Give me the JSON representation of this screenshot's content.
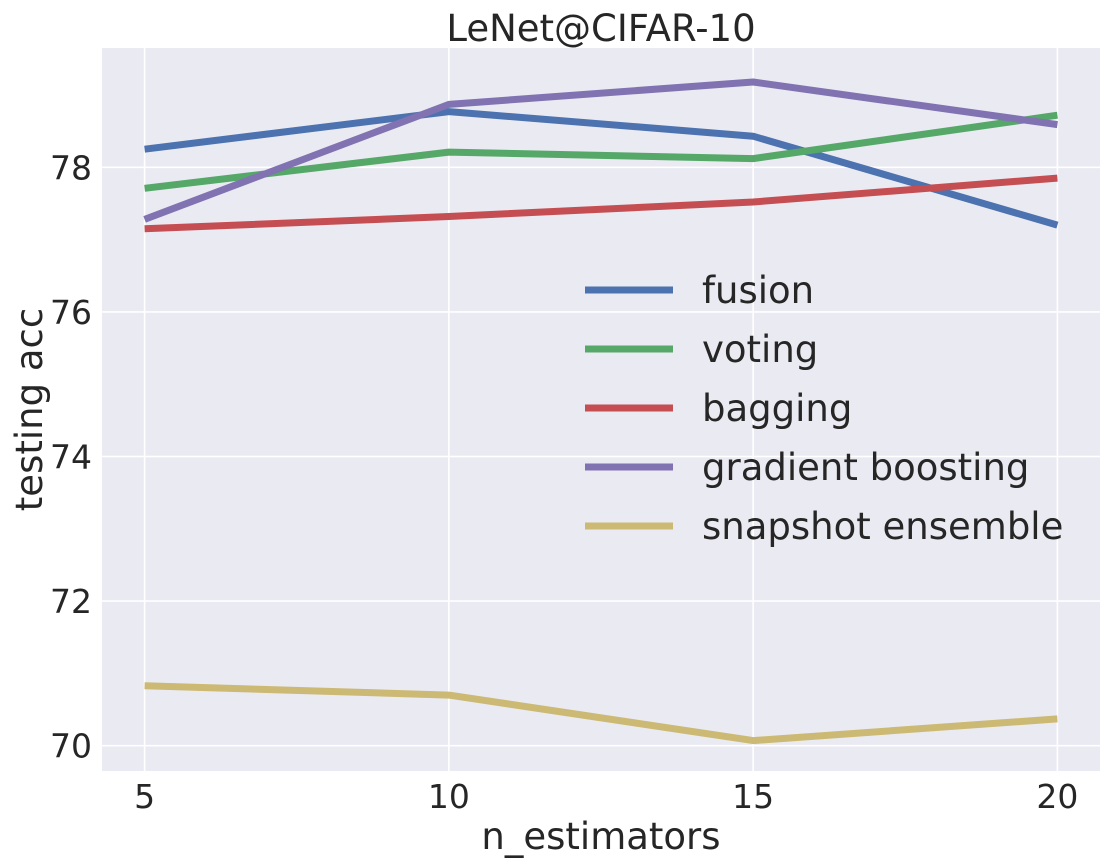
{
  "chart_data": {
    "type": "line",
    "title": "LeNet@CIFAR-10",
    "xlabel": "n_estimators",
    "ylabel": "testing acc",
    "x": [
      5,
      10,
      15,
      20
    ],
    "xticks": [
      "5",
      "10",
      "15",
      "20"
    ],
    "yticks": [
      "70",
      "72",
      "74",
      "76",
      "78"
    ],
    "xlim": [
      4.3,
      20.7
    ],
    "ylim": [
      69.65,
      79.65
    ],
    "grid": true,
    "legend_position": "center-right",
    "series": [
      {
        "name": "fusion",
        "color": "#4c72b0",
        "values": [
          78.25,
          78.77,
          78.43,
          77.2
        ]
      },
      {
        "name": "voting",
        "color": "#55a868",
        "values": [
          77.71,
          78.21,
          78.12,
          78.72
        ]
      },
      {
        "name": "bagging",
        "color": "#c44e52",
        "values": [
          77.15,
          77.32,
          77.52,
          77.85
        ]
      },
      {
        "name": "gradient boosting",
        "color": "#8172b2",
        "values": [
          77.28,
          78.87,
          79.18,
          78.59
        ]
      },
      {
        "name": "snapshot ensemble",
        "color": "#ccb974",
        "values": [
          70.83,
          70.7,
          70.07,
          70.37
        ]
      }
    ]
  }
}
